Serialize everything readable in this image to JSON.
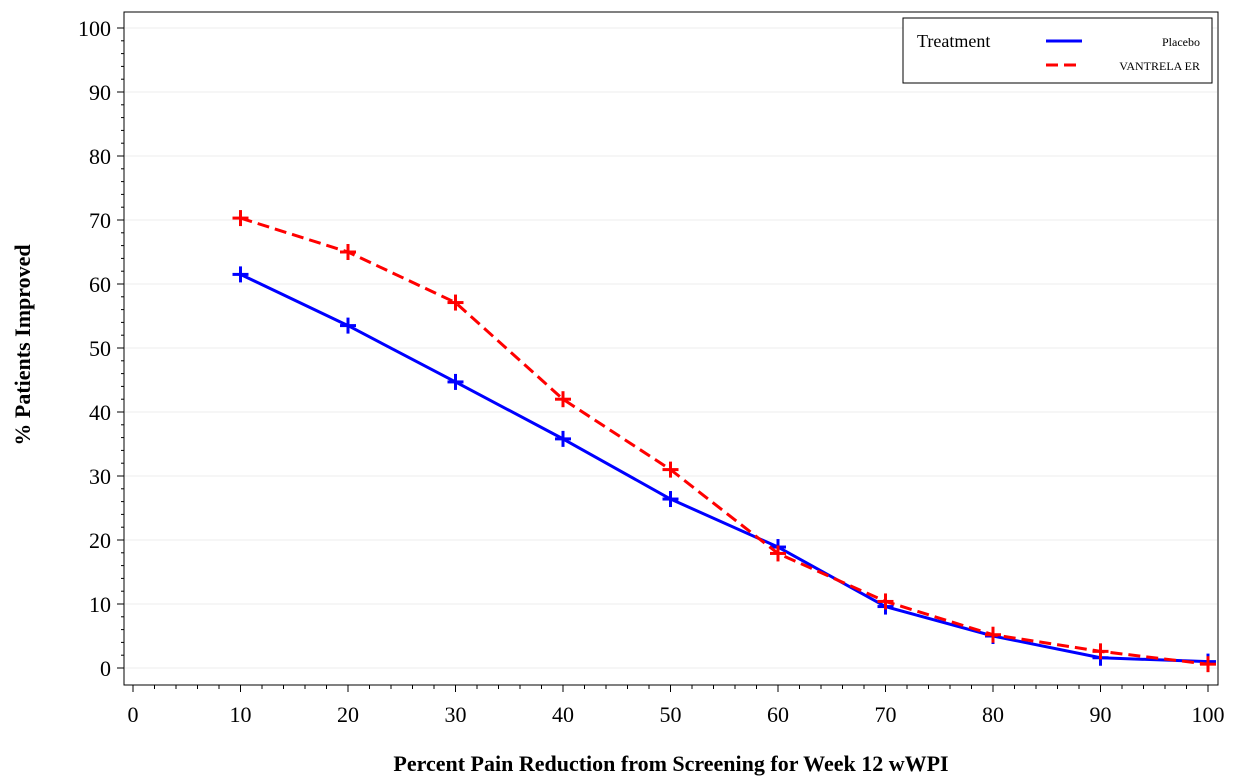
{
  "chart_data": {
    "type": "line",
    "title": "",
    "xlabel": "Percent Pain Reduction from Screening for Week 12 wWPI",
    "ylabel": "% Patients Improved",
    "xlim": [
      0,
      100
    ],
    "ylim": [
      0,
      100
    ],
    "x_ticks": [
      "0",
      "10",
      "20",
      "30",
      "40",
      "50",
      "60",
      "70",
      "80",
      "90",
      "100"
    ],
    "y_ticks": [
      "0",
      "10",
      "20",
      "30",
      "40",
      "50",
      "60",
      "70",
      "80",
      "90",
      "100"
    ],
    "grid": true,
    "legend": {
      "title": "Treatment",
      "position": "top-right"
    },
    "x": [
      10,
      20,
      30,
      40,
      50,
      60,
      70,
      80,
      90,
      100
    ],
    "series": [
      {
        "name": "Placebo",
        "color": "#0000ff",
        "style": "solid",
        "marker": "plus",
        "values": [
          61.5,
          53.5,
          44.7,
          35.8,
          26.4,
          18.9,
          9.6,
          5.0,
          1.6,
          1.0
        ]
      },
      {
        "name": "VANTRELA ER",
        "color": "#ff0000",
        "style": "dashed",
        "marker": "plus",
        "values": [
          70.3,
          65.0,
          57.1,
          42.0,
          31.0,
          17.9,
          10.4,
          5.2,
          2.6,
          0.6
        ]
      }
    ]
  }
}
